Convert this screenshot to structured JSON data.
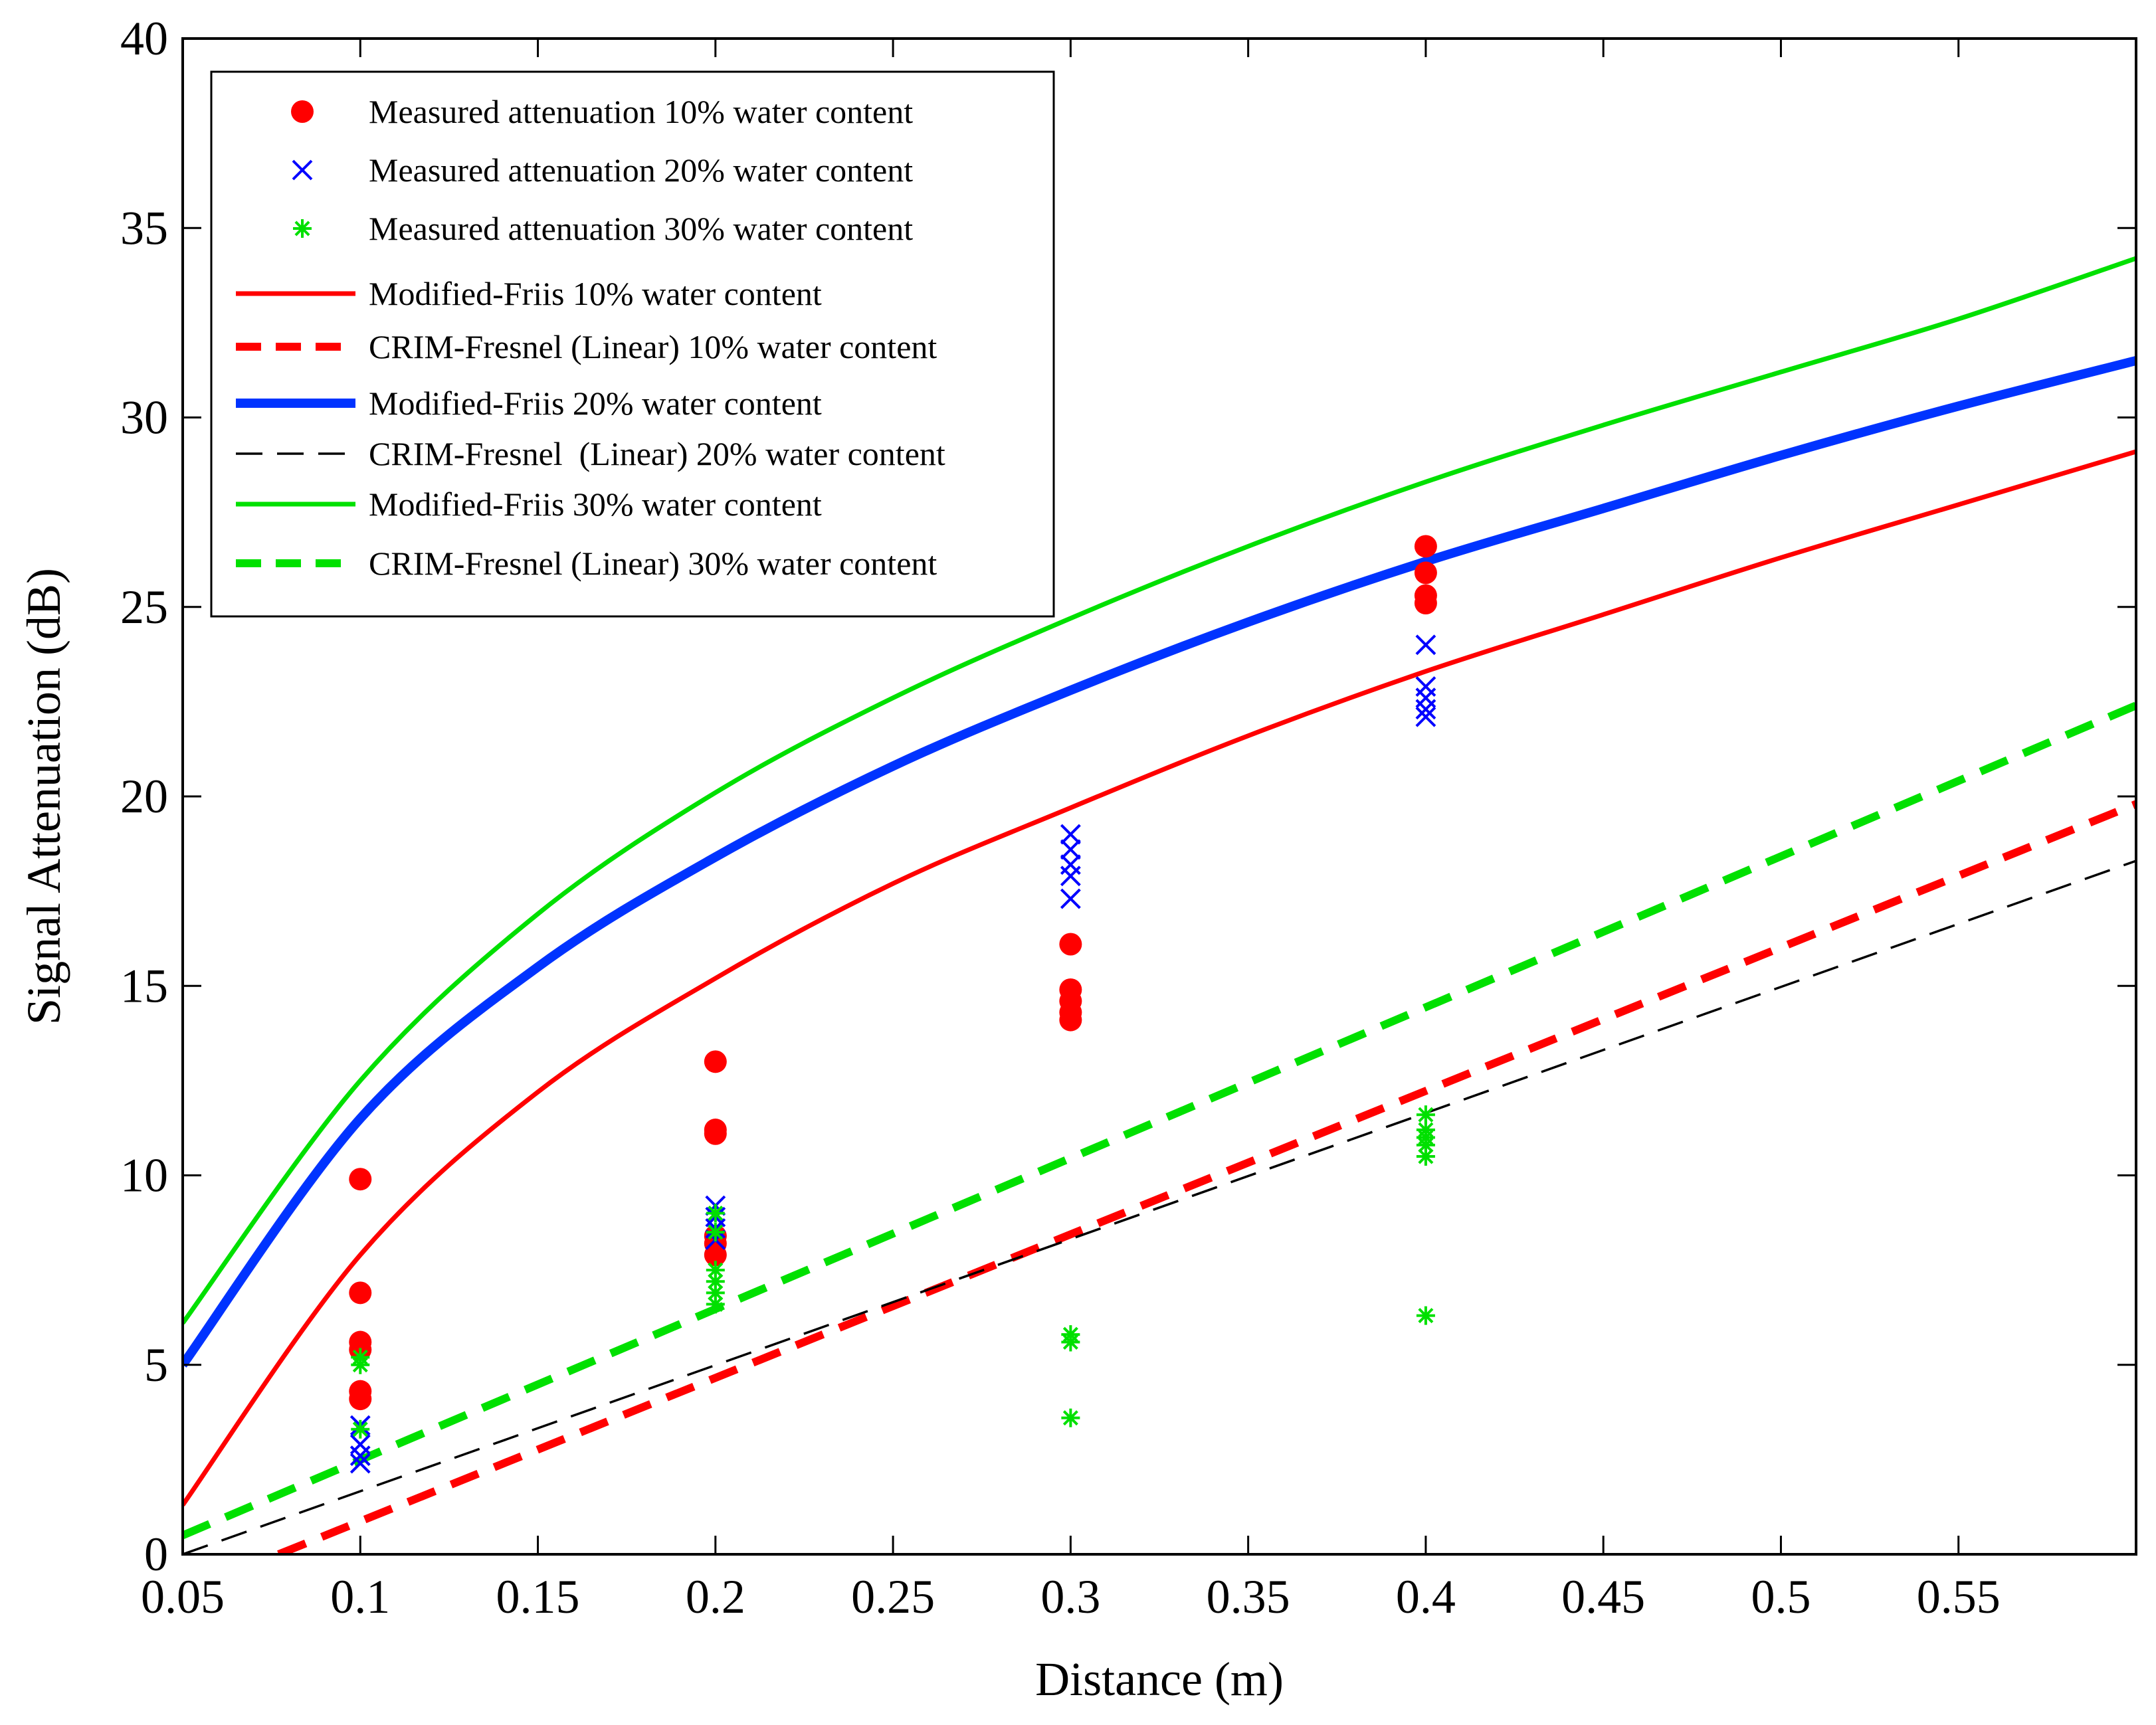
{
  "chart_data": {
    "type": "scatter",
    "title": "",
    "xlabel": "Distance (m)",
    "ylabel": "Signal Attenuation (dB)",
    "xlim": [
      0.05,
      0.6
    ],
    "ylim": [
      0,
      40
    ],
    "grid": false,
    "legend_position": "top-left",
    "x_ticks": [
      0.05,
      0.1,
      0.15,
      0.2,
      0.25,
      0.3,
      0.35,
      0.4,
      0.45,
      0.5,
      0.55
    ],
    "x_tick_labels": [
      "0.05",
      "0.1",
      "0.15",
      "0.2",
      "0.25",
      "0.3",
      "0.35",
      "0.4",
      "0.45",
      "0.5",
      "0.55"
    ],
    "y_ticks": [
      0,
      5,
      10,
      15,
      20,
      25,
      30,
      35,
      40
    ],
    "y_tick_labels": [
      "0",
      "5",
      "10",
      "15",
      "20",
      "25",
      "30",
      "35",
      "40"
    ],
    "series": [
      {
        "name": "Measured attenuation 10% water content",
        "kind": "scatter",
        "marker": "circle",
        "color": "#ff0000",
        "points": [
          [
            0.1,
            9.9
          ],
          [
            0.1,
            6.9
          ],
          [
            0.1,
            5.6
          ],
          [
            0.1,
            5.4
          ],
          [
            0.1,
            4.3
          ],
          [
            0.1,
            4.1
          ],
          [
            0.2,
            13.0
          ],
          [
            0.2,
            11.2
          ],
          [
            0.2,
            11.1
          ],
          [
            0.2,
            8.4
          ],
          [
            0.2,
            8.2
          ],
          [
            0.2,
            7.9
          ],
          [
            0.3,
            16.1
          ],
          [
            0.3,
            14.9
          ],
          [
            0.3,
            14.6
          ],
          [
            0.3,
            14.3
          ],
          [
            0.3,
            14.1
          ],
          [
            0.4,
            26.6
          ],
          [
            0.4,
            25.9
          ],
          [
            0.4,
            25.3
          ],
          [
            0.4,
            25.1
          ]
        ]
      },
      {
        "name": "Measured attenuation 20% water content",
        "kind": "scatter",
        "marker": "x",
        "color": "#0000ff",
        "points": [
          [
            0.1,
            3.4
          ],
          [
            0.1,
            2.9
          ],
          [
            0.1,
            2.6
          ],
          [
            0.1,
            2.4
          ],
          [
            0.2,
            9.2
          ],
          [
            0.2,
            8.9
          ],
          [
            0.2,
            8.6
          ],
          [
            0.2,
            8.3
          ],
          [
            0.3,
            19.0
          ],
          [
            0.3,
            18.6
          ],
          [
            0.3,
            18.2
          ],
          [
            0.3,
            17.9
          ],
          [
            0.3,
            17.3
          ],
          [
            0.4,
            24.0
          ],
          [
            0.4,
            22.9
          ],
          [
            0.4,
            22.6
          ],
          [
            0.4,
            22.3
          ],
          [
            0.4,
            22.1
          ]
        ]
      },
      {
        "name": "Measured attenuation 30% water content",
        "kind": "scatter",
        "marker": "asterisk",
        "color": "#00e000",
        "points": [
          [
            0.1,
            5.2
          ],
          [
            0.1,
            5.0
          ],
          [
            0.1,
            3.3
          ],
          [
            0.2,
            9.0
          ],
          [
            0.2,
            8.5
          ],
          [
            0.2,
            7.5
          ],
          [
            0.2,
            7.2
          ],
          [
            0.2,
            6.9
          ],
          [
            0.2,
            6.6
          ],
          [
            0.3,
            5.8
          ],
          [
            0.3,
            5.6
          ],
          [
            0.3,
            3.6
          ],
          [
            0.4,
            11.6
          ],
          [
            0.4,
            11.2
          ],
          [
            0.4,
            11.0
          ],
          [
            0.4,
            10.8
          ],
          [
            0.4,
            10.5
          ],
          [
            0.4,
            6.3
          ]
        ]
      },
      {
        "name": "Modified-Friis 10% water content",
        "kind": "line",
        "style": "solid",
        "color": "#ff0000",
        "x": [
          0.05,
          0.1,
          0.15,
          0.2,
          0.25,
          0.3,
          0.35,
          0.4,
          0.45,
          0.5,
          0.55,
          0.6
        ],
        "values": [
          1.3,
          7.9,
          12.2,
          15.2,
          17.7,
          19.7,
          21.6,
          23.3,
          24.8,
          26.3,
          27.7,
          29.1
        ]
      },
      {
        "name": "CRIM-Fresnel (Linear) 10% water content",
        "kind": "line",
        "style": "dashed",
        "color": "#ff0000",
        "x": [
          0.077,
          0.6
        ],
        "values": [
          0.0,
          19.8
        ]
      },
      {
        "name": "Modified-Friis 20% water content",
        "kind": "line",
        "style": "thick",
        "color": "#0033ff",
        "x": [
          0.05,
          0.1,
          0.15,
          0.2,
          0.25,
          0.3,
          0.35,
          0.4,
          0.45,
          0.5,
          0.55,
          0.6
        ],
        "values": [
          5.0,
          11.5,
          15.5,
          18.4,
          20.8,
          22.8,
          24.6,
          26.2,
          27.6,
          29.0,
          30.3,
          31.5
        ]
      },
      {
        "name": "CRIM-Fresnel  (Linear) 20% water content",
        "kind": "line",
        "style": "thin-dashed",
        "color": "#000000",
        "x": [
          0.05,
          0.6
        ],
        "values": [
          0.0,
          18.3
        ]
      },
      {
        "name": "Modified-Friis 30% water content",
        "kind": "line",
        "style": "solid",
        "color": "#00e000",
        "x": [
          0.05,
          0.1,
          0.15,
          0.2,
          0.25,
          0.3,
          0.35,
          0.4,
          0.45,
          0.5,
          0.55,
          0.6
        ],
        "values": [
          6.1,
          12.5,
          16.9,
          20.1,
          22.6,
          24.7,
          26.6,
          28.3,
          29.8,
          31.2,
          32.6,
          34.2
        ]
      },
      {
        "name": "CRIM-Fresnel (Linear) 30% water content",
        "kind": "line",
        "style": "dashed",
        "color": "#00e000",
        "x": [
          0.05,
          0.6
        ],
        "values": [
          0.5,
          22.4
        ]
      }
    ]
  }
}
